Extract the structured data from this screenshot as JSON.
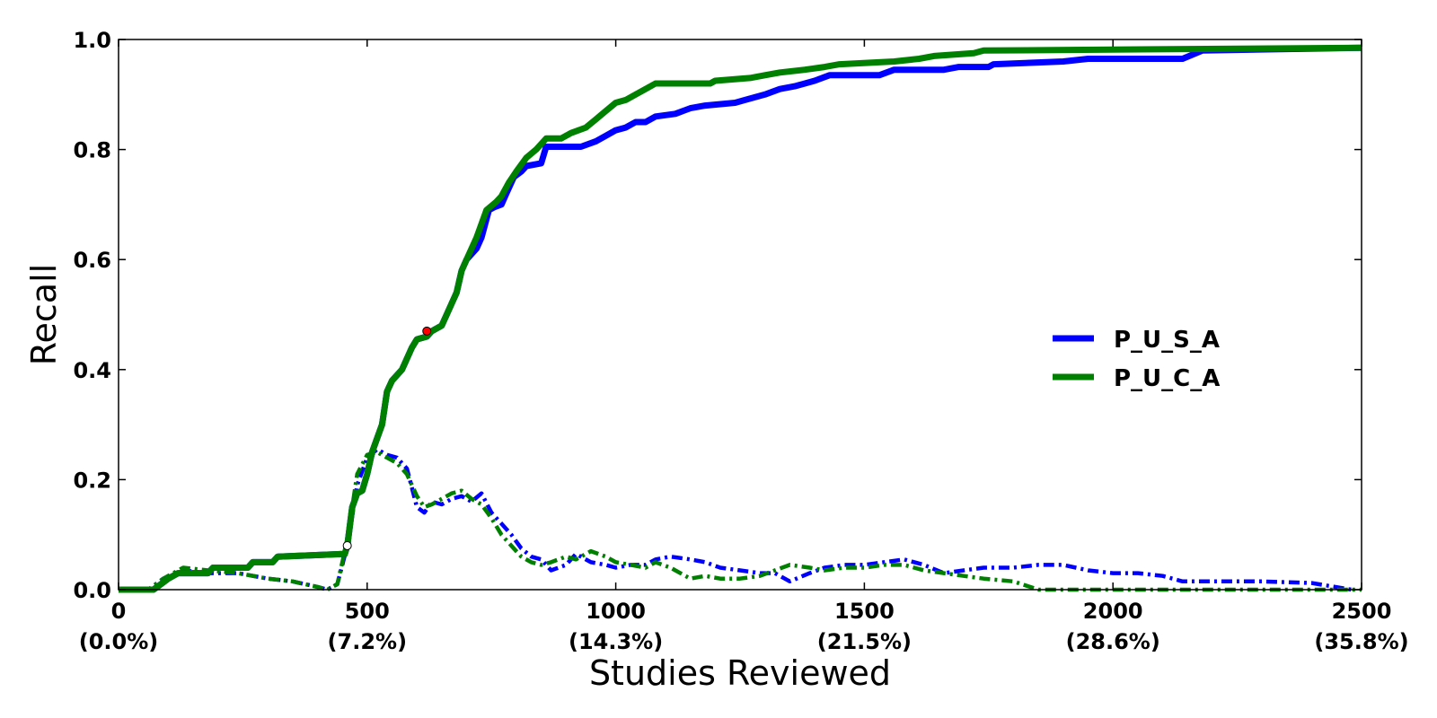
{
  "chart_data": {
    "type": "line",
    "xlabel": "Studies Reviewed",
    "ylabel": "Recall",
    "xlim": [
      0,
      2500
    ],
    "ylim": [
      0,
      1.0
    ],
    "grid": false,
    "legend_position": "center-right",
    "x_ticks": [
      {
        "value": 0,
        "label": "0",
        "sublabel": "(0.0%)"
      },
      {
        "value": 500,
        "label": "500",
        "sublabel": "(7.2%)"
      },
      {
        "value": 1000,
        "label": "1000",
        "sublabel": "(14.3%)"
      },
      {
        "value": 1500,
        "label": "1500",
        "sublabel": "(21.5%)"
      },
      {
        "value": 2000,
        "label": "2000",
        "sublabel": "(28.6%)"
      },
      {
        "value": 2500,
        "label": "2500",
        "sublabel": "(35.8%)"
      }
    ],
    "y_ticks": [
      {
        "value": 0.0,
        "label": "0.0"
      },
      {
        "value": 0.2,
        "label": "0.2"
      },
      {
        "value": 0.4,
        "label": "0.4"
      },
      {
        "value": 0.6,
        "label": "0.6"
      },
      {
        "value": 0.8,
        "label": "0.8"
      },
      {
        "value": 1.0,
        "label": "1.0"
      }
    ],
    "series": [
      {
        "name": "P_U_S_A",
        "color": "#0000ff",
        "style": "solid",
        "in_legend": true,
        "points": [
          [
            0,
            0
          ],
          [
            70,
            0
          ],
          [
            85,
            0.01
          ],
          [
            100,
            0.02
          ],
          [
            120,
            0.03
          ],
          [
            180,
            0.03
          ],
          [
            190,
            0.04
          ],
          [
            260,
            0.04
          ],
          [
            270,
            0.05
          ],
          [
            310,
            0.05
          ],
          [
            320,
            0.06
          ],
          [
            455,
            0.065
          ],
          [
            460,
            0.08
          ],
          [
            470,
            0.15
          ],
          [
            480,
            0.175
          ],
          [
            490,
            0.18
          ],
          [
            500,
            0.21
          ],
          [
            510,
            0.25
          ],
          [
            530,
            0.3
          ],
          [
            540,
            0.36
          ],
          [
            550,
            0.38
          ],
          [
            570,
            0.4
          ],
          [
            590,
            0.44
          ],
          [
            600,
            0.455
          ],
          [
            620,
            0.46
          ],
          [
            630,
            0.47
          ],
          [
            650,
            0.48
          ],
          [
            665,
            0.51
          ],
          [
            680,
            0.54
          ],
          [
            690,
            0.58
          ],
          [
            700,
            0.6
          ],
          [
            720,
            0.62
          ],
          [
            730,
            0.64
          ],
          [
            745,
            0.69
          ],
          [
            755,
            0.695
          ],
          [
            770,
            0.7
          ],
          [
            780,
            0.72
          ],
          [
            795,
            0.75
          ],
          [
            810,
            0.76
          ],
          [
            820,
            0.77
          ],
          [
            850,
            0.775
          ],
          [
            860,
            0.805
          ],
          [
            930,
            0.805
          ],
          [
            960,
            0.815
          ],
          [
            980,
            0.825
          ],
          [
            1000,
            0.835
          ],
          [
            1020,
            0.84
          ],
          [
            1040,
            0.85
          ],
          [
            1060,
            0.85
          ],
          [
            1080,
            0.86
          ],
          [
            1120,
            0.865
          ],
          [
            1150,
            0.875
          ],
          [
            1180,
            0.88
          ],
          [
            1240,
            0.885
          ],
          [
            1260,
            0.89
          ],
          [
            1300,
            0.9
          ],
          [
            1330,
            0.91
          ],
          [
            1360,
            0.915
          ],
          [
            1400,
            0.925
          ],
          [
            1430,
            0.935
          ],
          [
            1530,
            0.935
          ],
          [
            1560,
            0.945
          ],
          [
            1660,
            0.945
          ],
          [
            1690,
            0.95
          ],
          [
            1750,
            0.95
          ],
          [
            1760,
            0.955
          ],
          [
            1900,
            0.96
          ],
          [
            1950,
            0.965
          ],
          [
            2140,
            0.965
          ],
          [
            2180,
            0.98
          ],
          [
            2500,
            0.985
          ]
        ]
      },
      {
        "name": "P_U_C_A",
        "color": "#008000",
        "style": "solid",
        "in_legend": true,
        "points": [
          [
            0,
            0
          ],
          [
            70,
            0
          ],
          [
            85,
            0.01
          ],
          [
            100,
            0.02
          ],
          [
            120,
            0.03
          ],
          [
            180,
            0.03
          ],
          [
            190,
            0.04
          ],
          [
            260,
            0.04
          ],
          [
            270,
            0.05
          ],
          [
            310,
            0.05
          ],
          [
            320,
            0.06
          ],
          [
            455,
            0.065
          ],
          [
            460,
            0.08
          ],
          [
            470,
            0.15
          ],
          [
            480,
            0.175
          ],
          [
            490,
            0.18
          ],
          [
            500,
            0.21
          ],
          [
            510,
            0.25
          ],
          [
            530,
            0.3
          ],
          [
            540,
            0.36
          ],
          [
            550,
            0.38
          ],
          [
            570,
            0.4
          ],
          [
            590,
            0.44
          ],
          [
            600,
            0.455
          ],
          [
            620,
            0.46
          ],
          [
            630,
            0.47
          ],
          [
            650,
            0.48
          ],
          [
            665,
            0.51
          ],
          [
            680,
            0.54
          ],
          [
            690,
            0.58
          ],
          [
            700,
            0.6
          ],
          [
            720,
            0.64
          ],
          [
            740,
            0.69
          ],
          [
            760,
            0.705
          ],
          [
            770,
            0.715
          ],
          [
            785,
            0.74
          ],
          [
            800,
            0.76
          ],
          [
            820,
            0.785
          ],
          [
            840,
            0.8
          ],
          [
            860,
            0.82
          ],
          [
            890,
            0.82
          ],
          [
            910,
            0.83
          ],
          [
            940,
            0.84
          ],
          [
            960,
            0.855
          ],
          [
            980,
            0.87
          ],
          [
            1000,
            0.885
          ],
          [
            1020,
            0.89
          ],
          [
            1040,
            0.9
          ],
          [
            1060,
            0.91
          ],
          [
            1080,
            0.92
          ],
          [
            1190,
            0.92
          ],
          [
            1200,
            0.925
          ],
          [
            1270,
            0.93
          ],
          [
            1300,
            0.935
          ],
          [
            1330,
            0.94
          ],
          [
            1380,
            0.945
          ],
          [
            1420,
            0.95
          ],
          [
            1450,
            0.955
          ],
          [
            1560,
            0.96
          ],
          [
            1610,
            0.965
          ],
          [
            1640,
            0.97
          ],
          [
            1720,
            0.975
          ],
          [
            1740,
            0.98
          ],
          [
            2500,
            0.985
          ]
        ]
      },
      {
        "name": "",
        "color": "#0000ff",
        "style": "dashdot",
        "in_legend": false,
        "points": [
          [
            0,
            0
          ],
          [
            60,
            0
          ],
          [
            90,
            0.02
          ],
          [
            130,
            0.035
          ],
          [
            180,
            0.03
          ],
          [
            240,
            0.03
          ],
          [
            300,
            0.02
          ],
          [
            350,
            0.015
          ],
          [
            400,
            0.005
          ],
          [
            420,
            0.0
          ],
          [
            440,
            0.01
          ],
          [
            460,
            0.08
          ],
          [
            480,
            0.19
          ],
          [
            500,
            0.24
          ],
          [
            520,
            0.255
          ],
          [
            540,
            0.245
          ],
          [
            560,
            0.24
          ],
          [
            580,
            0.22
          ],
          [
            600,
            0.15
          ],
          [
            615,
            0.14
          ],
          [
            630,
            0.16
          ],
          [
            650,
            0.155
          ],
          [
            670,
            0.165
          ],
          [
            690,
            0.17
          ],
          [
            710,
            0.16
          ],
          [
            730,
            0.175
          ],
          [
            750,
            0.14
          ],
          [
            770,
            0.12
          ],
          [
            790,
            0.1
          ],
          [
            810,
            0.075
          ],
          [
            830,
            0.06
          ],
          [
            850,
            0.055
          ],
          [
            870,
            0.035
          ],
          [
            900,
            0.045
          ],
          [
            920,
            0.065
          ],
          [
            950,
            0.05
          ],
          [
            980,
            0.045
          ],
          [
            1000,
            0.04
          ],
          [
            1030,
            0.045
          ],
          [
            1060,
            0.045
          ],
          [
            1080,
            0.055
          ],
          [
            1110,
            0.06
          ],
          [
            1150,
            0.055
          ],
          [
            1180,
            0.05
          ],
          [
            1210,
            0.04
          ],
          [
            1250,
            0.035
          ],
          [
            1290,
            0.03
          ],
          [
            1320,
            0.03
          ],
          [
            1350,
            0.015
          ],
          [
            1390,
            0.03
          ],
          [
            1420,
            0.04
          ],
          [
            1460,
            0.045
          ],
          [
            1500,
            0.045
          ],
          [
            1540,
            0.05
          ],
          [
            1580,
            0.055
          ],
          [
            1620,
            0.045
          ],
          [
            1660,
            0.03
          ],
          [
            1700,
            0.035
          ],
          [
            1740,
            0.04
          ],
          [
            1800,
            0.04
          ],
          [
            1850,
            0.045
          ],
          [
            1900,
            0.045
          ],
          [
            1950,
            0.035
          ],
          [
            2000,
            0.03
          ],
          [
            2050,
            0.03
          ],
          [
            2100,
            0.025
          ],
          [
            2140,
            0.015
          ],
          [
            2200,
            0.015
          ],
          [
            2300,
            0.015
          ],
          [
            2400,
            0.012
          ],
          [
            2480,
            0.0
          ]
        ]
      },
      {
        "name": "",
        "color": "#008000",
        "style": "dashdot",
        "in_legend": false,
        "points": [
          [
            0,
            0
          ],
          [
            60,
            0
          ],
          [
            90,
            0.02
          ],
          [
            130,
            0.04
          ],
          [
            180,
            0.035
          ],
          [
            240,
            0.03
          ],
          [
            300,
            0.02
          ],
          [
            350,
            0.015
          ],
          [
            400,
            0.005
          ],
          [
            420,
            0.0
          ],
          [
            440,
            0.01
          ],
          [
            460,
            0.09
          ],
          [
            480,
            0.21
          ],
          [
            500,
            0.245
          ],
          [
            520,
            0.25
          ],
          [
            540,
            0.24
          ],
          [
            560,
            0.23
          ],
          [
            580,
            0.21
          ],
          [
            600,
            0.17
          ],
          [
            615,
            0.15
          ],
          [
            630,
            0.155
          ],
          [
            650,
            0.165
          ],
          [
            670,
            0.175
          ],
          [
            690,
            0.18
          ],
          [
            710,
            0.165
          ],
          [
            730,
            0.155
          ],
          [
            750,
            0.13
          ],
          [
            770,
            0.1
          ],
          [
            790,
            0.08
          ],
          [
            810,
            0.06
          ],
          [
            830,
            0.05
          ],
          [
            850,
            0.045
          ],
          [
            870,
            0.05
          ],
          [
            900,
            0.06
          ],
          [
            920,
            0.055
          ],
          [
            950,
            0.07
          ],
          [
            980,
            0.06
          ],
          [
            1000,
            0.05
          ],
          [
            1030,
            0.045
          ],
          [
            1060,
            0.04
          ],
          [
            1080,
            0.05
          ],
          [
            1110,
            0.04
          ],
          [
            1150,
            0.02
          ],
          [
            1180,
            0.025
          ],
          [
            1210,
            0.02
          ],
          [
            1250,
            0.02
          ],
          [
            1290,
            0.025
          ],
          [
            1320,
            0.035
          ],
          [
            1350,
            0.045
          ],
          [
            1390,
            0.04
          ],
          [
            1420,
            0.035
          ],
          [
            1460,
            0.04
          ],
          [
            1500,
            0.04
          ],
          [
            1540,
            0.045
          ],
          [
            1580,
            0.045
          ],
          [
            1620,
            0.035
          ],
          [
            1660,
            0.03
          ],
          [
            1700,
            0.025
          ],
          [
            1740,
            0.02
          ],
          [
            1800,
            0.015
          ],
          [
            1850,
            0.0
          ],
          [
            2500,
            0.0
          ]
        ]
      }
    ],
    "markers": [
      {
        "x": 460,
        "y": 0.08,
        "color": "#ffffff"
      },
      {
        "x": 620,
        "y": 0.47,
        "color": "#ff0000"
      }
    ]
  }
}
